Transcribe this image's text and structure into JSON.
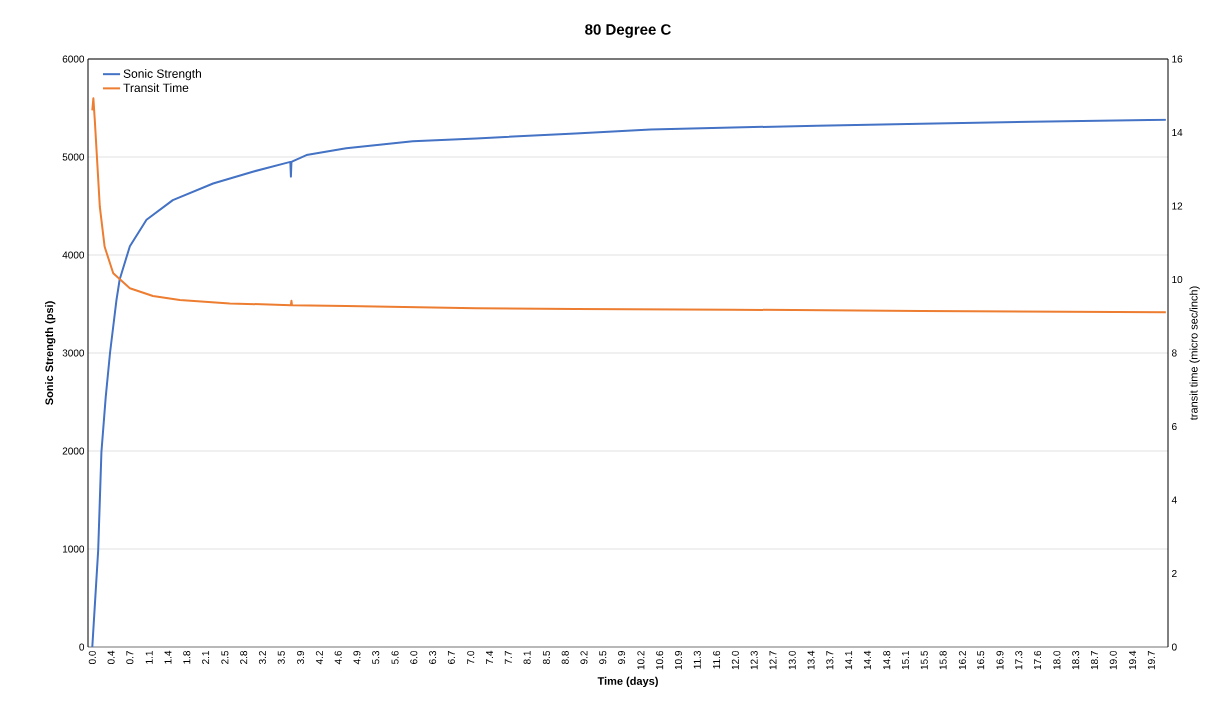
{
  "chart_data": {
    "type": "line",
    "title": "80 Degree C",
    "xlabel": "Time (days)",
    "ylabel": "Sonic Strength (psi)",
    "y2label": "transit time (micro sec/inch)",
    "xlim": [
      -0.08,
      20.04
    ],
    "ylim": [
      0,
      6000
    ],
    "y2lim": [
      0,
      16
    ],
    "xticks": [
      {
        "value": 0,
        "label": "0.0"
      },
      {
        "value": 0.35,
        "label": "0.4"
      },
      {
        "value": 0.7,
        "label": "0.7"
      },
      {
        "value": 1.06,
        "label": "1.1"
      },
      {
        "value": 1.41,
        "label": "1.4"
      },
      {
        "value": 1.76,
        "label": "1.8"
      },
      {
        "value": 2.11,
        "label": "2.1"
      },
      {
        "value": 2.47,
        "label": "2.5"
      },
      {
        "value": 2.82,
        "label": "2.8"
      },
      {
        "value": 3.17,
        "label": "3.2"
      },
      {
        "value": 3.52,
        "label": "3.5"
      },
      {
        "value": 3.88,
        "label": "3.9"
      },
      {
        "value": 4.23,
        "label": "4.2"
      },
      {
        "value": 4.58,
        "label": "4.6"
      },
      {
        "value": 4.93,
        "label": "4.9"
      },
      {
        "value": 5.28,
        "label": "5.3"
      },
      {
        "value": 5.64,
        "label": "5.6"
      },
      {
        "value": 5.99,
        "label": "6.0"
      },
      {
        "value": 6.34,
        "label": "6.3"
      },
      {
        "value": 6.69,
        "label": "6.7"
      },
      {
        "value": 7.05,
        "label": "7.0"
      },
      {
        "value": 7.4,
        "label": "7.4"
      },
      {
        "value": 7.75,
        "label": "7.7"
      },
      {
        "value": 8.1,
        "label": "8.1"
      },
      {
        "value": 8.46,
        "label": "8.5"
      },
      {
        "value": 8.81,
        "label": "8.8"
      },
      {
        "value": 9.16,
        "label": "9.2"
      },
      {
        "value": 9.51,
        "label": "9.5"
      },
      {
        "value": 9.86,
        "label": "9.9"
      },
      {
        "value": 10.22,
        "label": "10.2"
      },
      {
        "value": 10.57,
        "label": "10.6"
      },
      {
        "value": 10.92,
        "label": "10.9"
      },
      {
        "value": 11.27,
        "label": "11.3"
      },
      {
        "value": 11.63,
        "label": "11.6"
      },
      {
        "value": 11.98,
        "label": "12.0"
      },
      {
        "value": 12.33,
        "label": "12.3"
      },
      {
        "value": 12.68,
        "label": "12.7"
      },
      {
        "value": 13.04,
        "label": "13.0"
      },
      {
        "value": 13.39,
        "label": "13.4"
      },
      {
        "value": 13.74,
        "label": "13.7"
      },
      {
        "value": 14.09,
        "label": "14.1"
      },
      {
        "value": 14.44,
        "label": "14.4"
      },
      {
        "value": 14.8,
        "label": "14.8"
      },
      {
        "value": 15.15,
        "label": "15.1"
      },
      {
        "value": 15.5,
        "label": "15.5"
      },
      {
        "value": 15.85,
        "label": "15.8"
      },
      {
        "value": 16.21,
        "label": "16.2"
      },
      {
        "value": 16.55,
        "label": "16.5"
      },
      {
        "value": 16.91,
        "label": "16.9"
      },
      {
        "value": 17.26,
        "label": "17.3"
      },
      {
        "value": 17.61,
        "label": "17.6"
      },
      {
        "value": 17.97,
        "label": "18.0"
      },
      {
        "value": 18.32,
        "label": "18.3"
      },
      {
        "value": 18.67,
        "label": "18.7"
      },
      {
        "value": 19.02,
        "label": "19.0"
      },
      {
        "value": 19.38,
        "label": "19.4"
      },
      {
        "value": 19.73,
        "label": "19.7"
      }
    ],
    "yticks": [
      0,
      1000,
      2000,
      3000,
      4000,
      5000,
      6000
    ],
    "y2ticks": [
      0,
      2,
      4,
      6,
      8,
      10,
      12,
      14,
      16
    ],
    "grid": "y",
    "legend": "top left",
    "marker": "none",
    "line_style": "solid",
    "series": [
      {
        "name": "Sonic Strength",
        "color": "#4472c4",
        "x": [
          0,
          0.05,
          0.11,
          0.17,
          0.25,
          0.33,
          0.45,
          0.51,
          0.7,
          1.01,
          1.5,
          2.25,
          2.99,
          3.69,
          3.7,
          3.71,
          3.75,
          3.99,
          4.73,
          5.97,
          7.15,
          9.0,
          10.4,
          11.93,
          13.5,
          15.44,
          17.5,
          20.0
        ],
        "values": [
          0,
          450,
          990,
          1990,
          2550,
          3000,
          3540,
          3750,
          4090,
          4360,
          4560,
          4730,
          4850,
          4950,
          4800,
          4950,
          4960,
          5020,
          5090,
          5160,
          5190,
          5240,
          5280,
          5300,
          5320,
          5340,
          5360,
          5380
        ]
      },
      {
        "name": "Transit Time",
        "color": "#ed7d31",
        "axis": "y2",
        "x": [
          0,
          0.02,
          0.05,
          0.14,
          0.23,
          0.39,
          0.7,
          1.13,
          1.63,
          2.56,
          3.7,
          3.71,
          3.72,
          4.73,
          7.15,
          9.0,
          11.93,
          15.44,
          20.0
        ],
        "values": [
          14.6,
          14.93,
          14.25,
          11.98,
          10.89,
          10.17,
          9.76,
          9.55,
          9.44,
          9.35,
          9.3,
          9.42,
          9.3,
          9.28,
          9.22,
          9.2,
          9.18,
          9.14,
          9.11
        ]
      }
    ]
  }
}
